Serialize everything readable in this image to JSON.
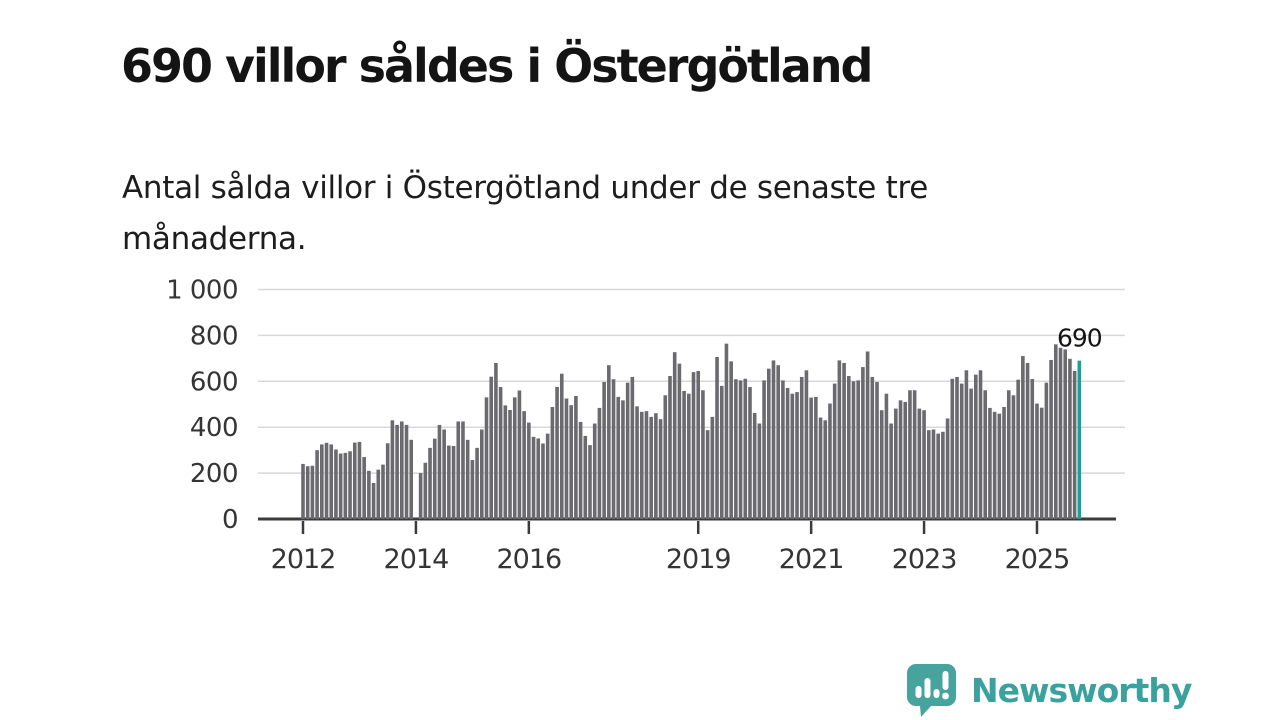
{
  "page": {
    "title": "690 villor såldes i Östergötland",
    "subtitle": "Antal sålda villor i Östergötland under de senaste tre månaderna."
  },
  "chart_data": {
    "type": "bar",
    "title": "690 villor såldes i Östergötland",
    "xlabel": "",
    "ylabel": "",
    "ylim": [
      0,
      1000
    ],
    "grid": "horizontal",
    "frequency": "monthly",
    "x_start_month": "2012-01",
    "note_missing_data": "one month around 2014-01 has no bar",
    "values": [
      240,
      230,
      232,
      300,
      325,
      332,
      325,
      303,
      285,
      288,
      295,
      333,
      336,
      270,
      210,
      157,
      215,
      237,
      330,
      430,
      410,
      425,
      410,
      345,
      null,
      200,
      245,
      310,
      350,
      410,
      390,
      320,
      318,
      425,
      425,
      345,
      257,
      310,
      390,
      530,
      620,
      680,
      575,
      495,
      475,
      530,
      560,
      470,
      420,
      358,
      351,
      329,
      372,
      488,
      575,
      633,
      525,
      496,
      536,
      423,
      362,
      322,
      416,
      484,
      597,
      670,
      609,
      532,
      517,
      594,
      619,
      491,
      467,
      470,
      445,
      461,
      435,
      539,
      623,
      727,
      677,
      558,
      546,
      640,
      645,
      561,
      387,
      445,
      706,
      580,
      764,
      687,
      609,
      604,
      611,
      575,
      462,
      416,
      604,
      655,
      691,
      670,
      604,
      571,
      546,
      553,
      619,
      648,
      529,
      532,
      442,
      430,
      503,
      590,
      691,
      680,
      623,
      600,
      604,
      662,
      730,
      619,
      597,
      474,
      546,
      416,
      481,
      517,
      510,
      561,
      561,
      481,
      474,
      387,
      390,
      372,
      380,
      438,
      611,
      619,
      590,
      648,
      568,
      629,
      648,
      561,
      484,
      467,
      459,
      488,
      561,
      539,
      607,
      710,
      680,
      610,
      503,
      485,
      594,
      693,
      761,
      746,
      739,
      698,
      645,
      690
    ],
    "highlight": {
      "month_index": 165,
      "value": 690,
      "label": "690"
    },
    "y_ticks": [
      {
        "value": 0,
        "label": "0"
      },
      {
        "value": 200,
        "label": "200"
      },
      {
        "value": 400,
        "label": "400"
      },
      {
        "value": 600,
        "label": "600"
      },
      {
        "value": 800,
        "label": "800"
      },
      {
        "value": 1000,
        "label": "1 000"
      }
    ],
    "x_ticks": [
      {
        "month_index": 0,
        "label": "2012"
      },
      {
        "month_index": 24,
        "label": "2014"
      },
      {
        "month_index": 48,
        "label": "2016"
      },
      {
        "month_index": 84,
        "label": "2019"
      },
      {
        "month_index": 108,
        "label": "2021"
      },
      {
        "month_index": 132,
        "label": "2023"
      },
      {
        "month_index": 156,
        "label": "2025"
      }
    ],
    "colors": {
      "bar": "#6a6a6f",
      "highlight_bar": "#18a09a",
      "gridline": "#d8d8d8",
      "axis": "#3b3b3b",
      "tick_label": "#353535",
      "annotation": "#141414"
    }
  },
  "footer": {
    "brand": "Newsworthy",
    "logo_icon": "speech-bubble-with-bar-chart-and-exclamation",
    "brand_color": "#3ba19e",
    "icon_color": "#46a39e"
  }
}
